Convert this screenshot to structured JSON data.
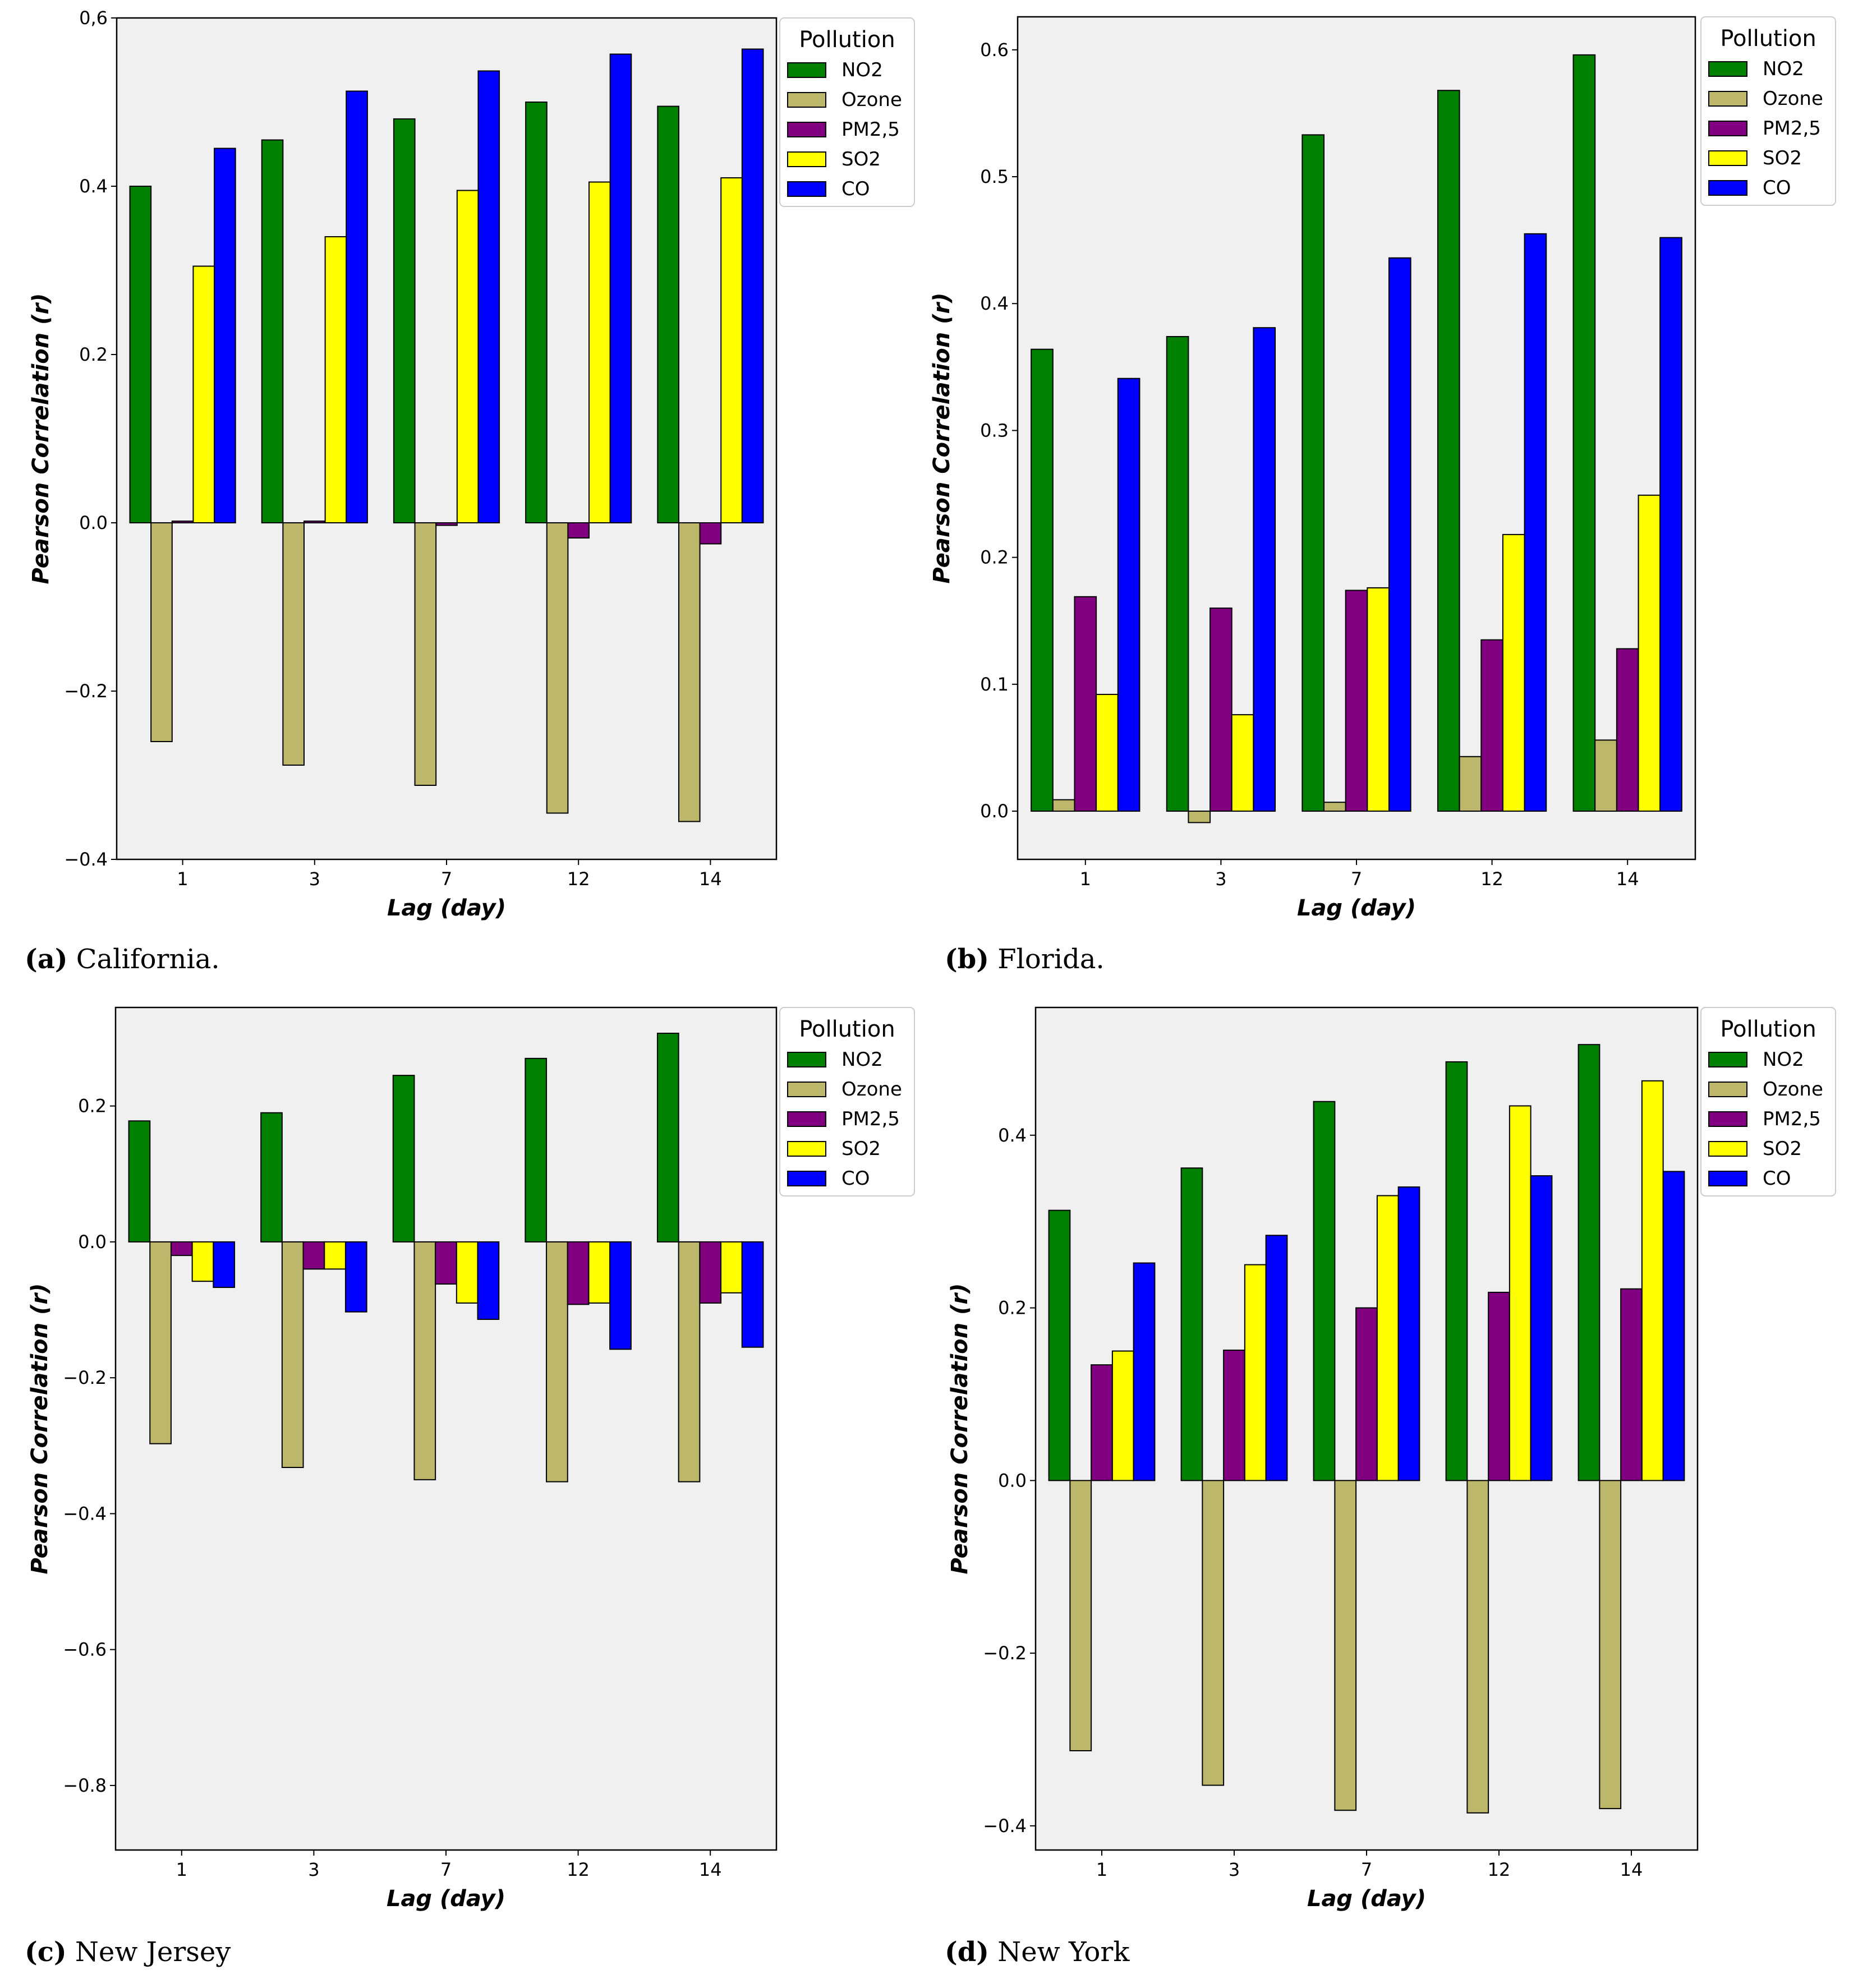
{
  "chart_data": [
    {
      "type": "bar",
      "caption_letter": "(a)",
      "caption_text": "California.",
      "categories": [
        "1",
        "3",
        "7",
        "12",
        "14"
      ],
      "xlabel": "Lag (day)",
      "ylabel": "Pearson Correlation (r)",
      "ylim": [
        -0.4,
        0.6
      ],
      "yticks": [
        -0.4,
        -0.2,
        0.0,
        0.2,
        0.4,
        0.6
      ],
      "ytick_labels": [
        "−0.4",
        "−0.2",
        "0.0",
        "0.2",
        "0.4",
        "0,6"
      ],
      "legend_title": "Pollution",
      "legend_position": "outside-top-right",
      "series": [
        {
          "name": "NO2",
          "color": "#008000",
          "values": [
            0.4,
            0.455,
            0.48,
            0.5,
            0.495
          ]
        },
        {
          "name": "Ozone",
          "color": "#bdb76b",
          "values": [
            -0.26,
            -0.288,
            -0.312,
            -0.345,
            -0.355
          ]
        },
        {
          "name": "PM2,5",
          "color": "#800080",
          "values": [
            0.002,
            0.002,
            -0.003,
            -0.018,
            -0.025
          ]
        },
        {
          "name": "SO2",
          "color": "#ffff00",
          "values": [
            0.305,
            0.34,
            0.395,
            0.405,
            0.41
          ]
        },
        {
          "name": "CO",
          "color": "#0000ff",
          "values": [
            0.445,
            0.513,
            0.537,
            0.557,
            0.563
          ]
        }
      ]
    },
    {
      "type": "bar",
      "caption_letter": "(b)",
      "caption_text": "Florida.",
      "categories": [
        "1",
        "3",
        "7",
        "12",
        "14"
      ],
      "xlabel": "Lag (day)",
      "ylabel": "Pearson Correlation (r)",
      "ylim": [
        -0.038,
        0.626
      ],
      "yticks": [
        0.0,
        0.1,
        0.2,
        0.3,
        0.4,
        0.5,
        0.6
      ],
      "ytick_labels": [
        "0.0",
        "0.1",
        "0.2",
        "0.3",
        "0.4",
        "0.5",
        "0.6"
      ],
      "legend_title": "Pollution",
      "legend_position": "outside-top-right",
      "series": [
        {
          "name": "NO2",
          "color": "#008000",
          "values": [
            0.364,
            0.374,
            0.533,
            0.568,
            0.596
          ]
        },
        {
          "name": "Ozone",
          "color": "#bdb76b",
          "values": [
            0.009,
            -0.009,
            0.007,
            0.043,
            0.056
          ]
        },
        {
          "name": "PM2,5",
          "color": "#800080",
          "values": [
            0.169,
            0.16,
            0.174,
            0.135,
            0.128
          ]
        },
        {
          "name": "SO2",
          "color": "#ffff00",
          "values": [
            0.092,
            0.076,
            0.176,
            0.218,
            0.249
          ]
        },
        {
          "name": "CO",
          "color": "#0000ff",
          "values": [
            0.341,
            0.381,
            0.436,
            0.455,
            0.452
          ]
        }
      ]
    },
    {
      "type": "bar",
      "caption_letter": "(c)",
      "caption_text": "New Jersey",
      "categories": [
        "1",
        "3",
        "7",
        "12",
        "14"
      ],
      "xlabel": "Lag (day)",
      "ylabel": "Pearson Correlation (r)",
      "ylim": [
        -0.895,
        0.345
      ],
      "yticks": [
        -0.8,
        -0.6,
        -0.4,
        -0.2,
        0.0,
        0.2
      ],
      "ytick_labels": [
        "−0.8",
        "−0.6",
        "−0.4",
        "−0.2",
        "0.0",
        "0.2"
      ],
      "legend_title": "Pollution",
      "legend_position": "outside-top-right",
      "series": [
        {
          "name": "NO2",
          "color": "#008000",
          "values": [
            0.178,
            0.19,
            0.245,
            0.27,
            0.307
          ]
        },
        {
          "name": "Ozone",
          "color": "#bdb76b",
          "values": [
            -0.297,
            -0.332,
            -0.35,
            -0.353,
            -0.353
          ]
        },
        {
          "name": "PM2,5",
          "color": "#800080",
          "values": [
            -0.02,
            -0.04,
            -0.062,
            -0.092,
            -0.09
          ]
        },
        {
          "name": "SO2",
          "color": "#ffff00",
          "values": [
            -0.058,
            -0.04,
            -0.09,
            -0.09,
            -0.075
          ]
        },
        {
          "name": "CO",
          "color": "#0000ff",
          "values": [
            -0.067,
            -0.103,
            -0.114,
            -0.158,
            -0.155
          ]
        }
      ]
    },
    {
      "type": "bar",
      "caption_letter": "(d)",
      "caption_text": "New York",
      "categories": [
        "1",
        "3",
        "7",
        "12",
        "14"
      ],
      "xlabel": "Lag (day)",
      "ylabel": "Pearson Correlation (r)",
      "ylim": [
        -0.428,
        0.548
      ],
      "yticks": [
        -0.4,
        -0.2,
        0.0,
        0.2,
        0.4
      ],
      "ytick_labels": [
        "−0.4",
        "−0.2",
        "0.0",
        "0.2",
        "0.4"
      ],
      "legend_title": "Pollution",
      "legend_position": "outside-top-right",
      "series": [
        {
          "name": "NO2",
          "color": "#008000",
          "values": [
            0.313,
            0.362,
            0.439,
            0.485,
            0.505
          ]
        },
        {
          "name": "Ozone",
          "color": "#bdb76b",
          "values": [
            -0.313,
            -0.353,
            -0.382,
            -0.385,
            -0.38
          ]
        },
        {
          "name": "PM2,5",
          "color": "#800080",
          "values": [
            0.134,
            0.151,
            0.2,
            0.218,
            0.222
          ]
        },
        {
          "name": "SO2",
          "color": "#ffff00",
          "values": [
            0.15,
            0.25,
            0.33,
            0.434,
            0.463
          ]
        },
        {
          "name": "CO",
          "color": "#0000ff",
          "values": [
            0.252,
            0.284,
            0.34,
            0.353,
            0.358
          ]
        }
      ]
    }
  ]
}
